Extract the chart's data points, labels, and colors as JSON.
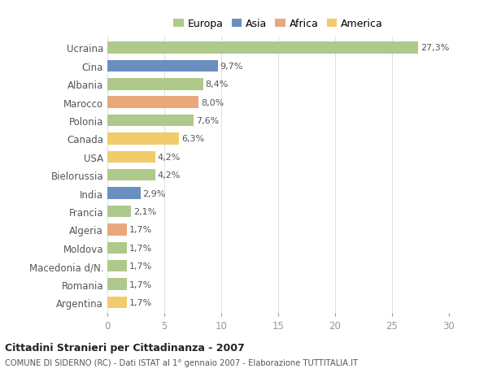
{
  "categories": [
    "Ucraina",
    "Cina",
    "Albania",
    "Marocco",
    "Polonia",
    "Canada",
    "USA",
    "Bielorussia",
    "India",
    "Francia",
    "Algeria",
    "Moldova",
    "Macedonia d/N.",
    "Romania",
    "Argentina"
  ],
  "values": [
    27.3,
    9.7,
    8.4,
    8.0,
    7.6,
    6.3,
    4.2,
    4.2,
    2.9,
    2.1,
    1.7,
    1.7,
    1.7,
    1.7,
    1.7
  ],
  "labels": [
    "27,3%",
    "9,7%",
    "8,4%",
    "8,0%",
    "7,6%",
    "6,3%",
    "4,2%",
    "4,2%",
    "2,9%",
    "2,1%",
    "1,7%",
    "1,7%",
    "1,7%",
    "1,7%",
    "1,7%"
  ],
  "continents": [
    "Europa",
    "Asia",
    "Europa",
    "Africa",
    "Europa",
    "America",
    "America",
    "Europa",
    "Asia",
    "Europa",
    "Africa",
    "Europa",
    "Europa",
    "Europa",
    "America"
  ],
  "colors": {
    "Europa": "#afc98a",
    "Asia": "#6b8ec0",
    "Africa": "#e8a87c",
    "America": "#f2cb6a"
  },
  "legend_order": [
    "Europa",
    "Asia",
    "Africa",
    "America"
  ],
  "title_bold": "Cittadini Stranieri per Cittadinanza - 2007",
  "subtitle": "COMUNE DI SIDERNO (RC) - Dati ISTAT al 1° gennaio 2007 - Elaborazione TUTTITALIA.IT",
  "xlim": [
    0,
    30
  ],
  "xticks": [
    0,
    5,
    10,
    15,
    20,
    25,
    30
  ],
  "background_color": "#ffffff",
  "plot_bg_color": "#ffffff",
  "grid_color": "#e0e0e0",
  "bar_height": 0.65,
  "label_fontsize": 8.0,
  "ytick_fontsize": 8.5,
  "xtick_fontsize": 8.5
}
